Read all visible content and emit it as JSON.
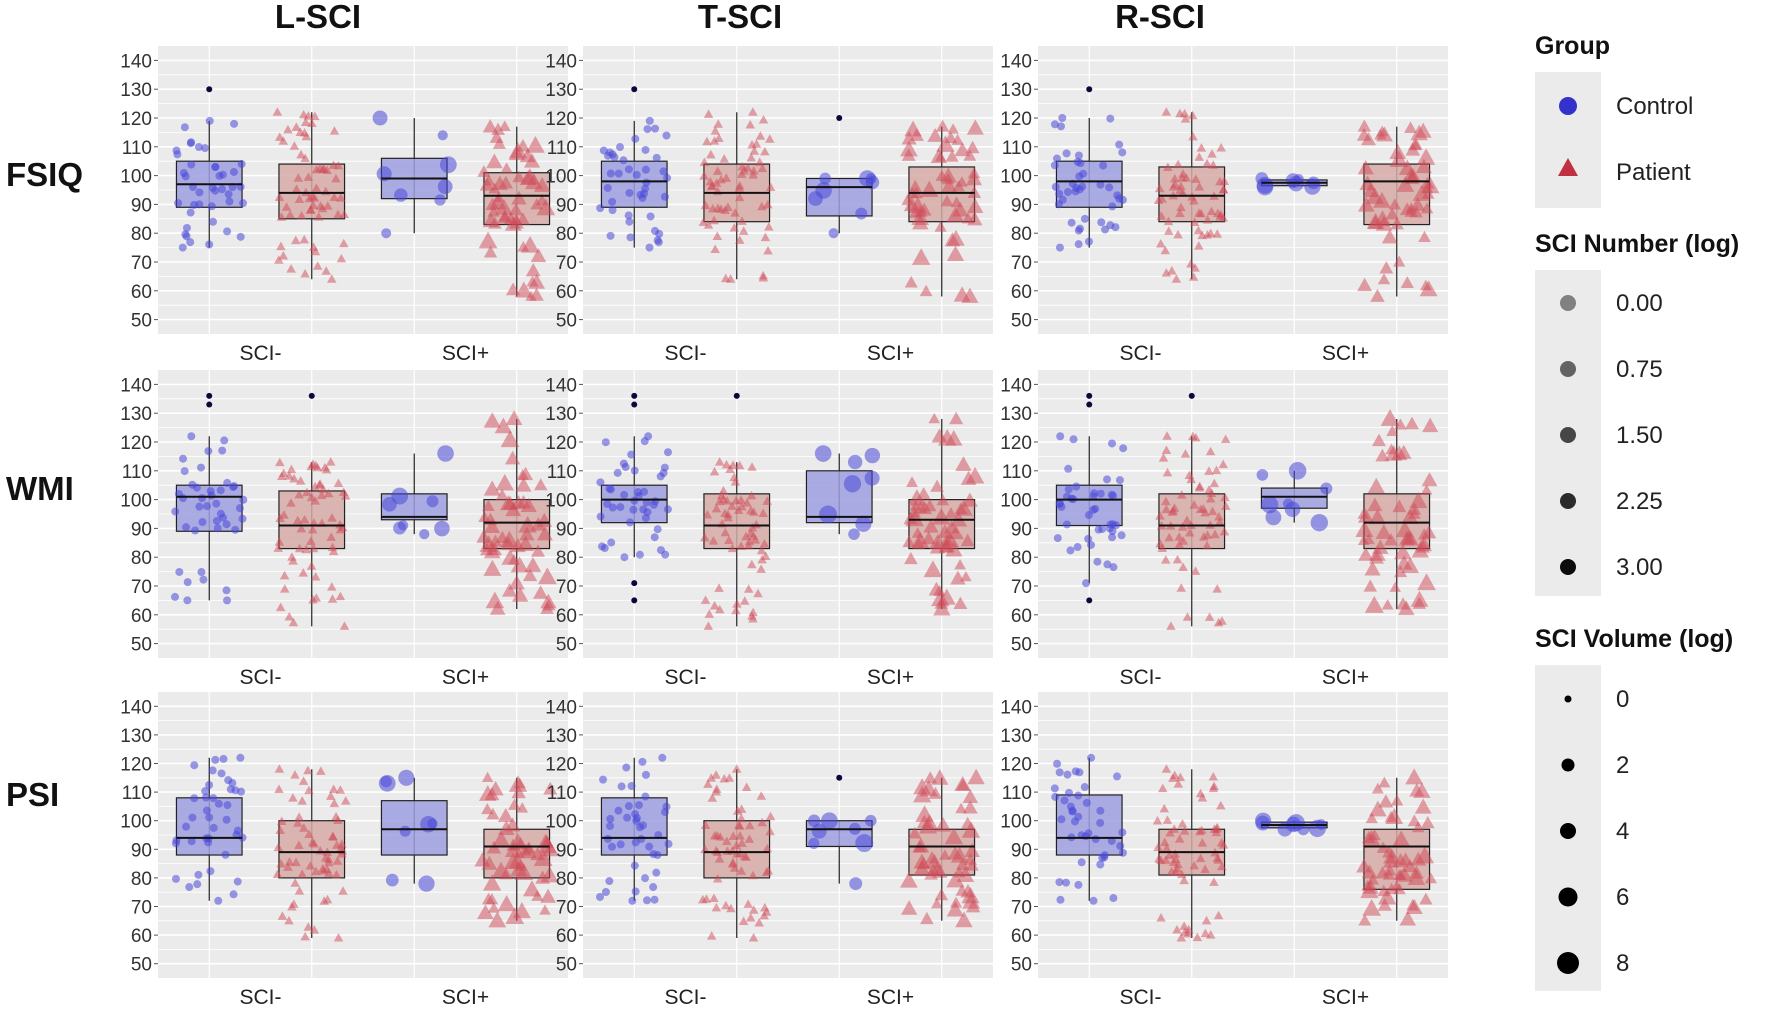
{
  "chart_data": {
    "type": "boxplot-grid",
    "columns": [
      "L-SCI",
      "T-SCI",
      "R-SCI"
    ],
    "rows": [
      "FSIQ",
      "WMI",
      "PSI"
    ],
    "categories": [
      "SCI-",
      "SCI+"
    ],
    "ylim": [
      45,
      145
    ],
    "yticks": [
      50,
      60,
      70,
      80,
      90,
      100,
      110,
      120,
      130,
      140
    ],
    "panels": [
      {
        "row": "FSIQ",
        "col": "L-SCI",
        "boxes": [
          {
            "group": "Control",
            "category": "SCI-",
            "q1": 89,
            "median": 97,
            "q3": 105,
            "wlo": 75,
            "whi": 119,
            "outliers": [
              130
            ]
          },
          {
            "group": "Patient",
            "category": "SCI-",
            "q1": 85,
            "median": 94,
            "q3": 104,
            "wlo": 64,
            "whi": 122,
            "outliers": []
          },
          {
            "group": "Control",
            "category": "SCI+",
            "q1": 92,
            "median": 99,
            "q3": 106,
            "wlo": 80,
            "whi": 120,
            "outliers": []
          },
          {
            "group": "Patient",
            "category": "SCI+",
            "q1": 83,
            "median": 93,
            "q3": 101,
            "wlo": 58,
            "whi": 117,
            "outliers": []
          }
        ]
      },
      {
        "row": "FSIQ",
        "col": "T-SCI",
        "boxes": [
          {
            "group": "Control",
            "category": "SCI-",
            "q1": 89,
            "median": 98,
            "q3": 105,
            "wlo": 75,
            "whi": 119,
            "outliers": [
              130
            ]
          },
          {
            "group": "Patient",
            "category": "SCI-",
            "q1": 84,
            "median": 94,
            "q3": 104,
            "wlo": 64,
            "whi": 122,
            "outliers": []
          },
          {
            "group": "Control",
            "category": "SCI+",
            "q1": 86,
            "median": 96,
            "q3": 99,
            "wlo": 80,
            "whi": 99,
            "outliers": [
              120
            ]
          },
          {
            "group": "Patient",
            "category": "SCI+",
            "q1": 84,
            "median": 94,
            "q3": 103,
            "wlo": 58,
            "whi": 117,
            "outliers": []
          }
        ]
      },
      {
        "row": "FSIQ",
        "col": "R-SCI",
        "boxes": [
          {
            "group": "Control",
            "category": "SCI-",
            "q1": 89,
            "median": 98,
            "q3": 105,
            "wlo": 75,
            "whi": 120,
            "outliers": [
              130
            ]
          },
          {
            "group": "Patient",
            "category": "SCI-",
            "q1": 84,
            "median": 93,
            "q3": 103,
            "wlo": 64,
            "whi": 122,
            "outliers": []
          },
          {
            "group": "Control",
            "category": "SCI+",
            "q1": 96.5,
            "median": 97.5,
            "q3": 98.5,
            "wlo": 96,
            "whi": 99,
            "outliers": []
          },
          {
            "group": "Patient",
            "category": "SCI+",
            "q1": 83,
            "median": 98,
            "q3": 104,
            "wlo": 58,
            "whi": 117,
            "outliers": []
          }
        ]
      },
      {
        "row": "WMI",
        "col": "L-SCI",
        "boxes": [
          {
            "group": "Control",
            "category": "SCI-",
            "q1": 89,
            "median": 101,
            "q3": 105,
            "wlo": 65,
            "whi": 122,
            "outliers": [
              133,
              136
            ]
          },
          {
            "group": "Patient",
            "category": "SCI-",
            "q1": 83,
            "median": 91,
            "q3": 103,
            "wlo": 56,
            "whi": 113,
            "outliers": [
              136
            ]
          },
          {
            "group": "Control",
            "category": "SCI+",
            "q1": 93,
            "median": 94,
            "q3": 102,
            "wlo": 88,
            "whi": 116,
            "outliers": []
          },
          {
            "group": "Patient",
            "category": "SCI+",
            "q1": 83,
            "median": 92,
            "q3": 100,
            "wlo": 62,
            "whi": 128,
            "outliers": []
          }
        ]
      },
      {
        "row": "WMI",
        "col": "T-SCI",
        "boxes": [
          {
            "group": "Control",
            "category": "SCI-",
            "q1": 92,
            "median": 100,
            "q3": 105,
            "wlo": 80,
            "whi": 122,
            "outliers": [
              65,
              71,
              133,
              136
            ]
          },
          {
            "group": "Patient",
            "category": "SCI-",
            "q1": 83,
            "median": 91,
            "q3": 102,
            "wlo": 56,
            "whi": 113,
            "outliers": [
              136
            ]
          },
          {
            "group": "Control",
            "category": "SCI+",
            "q1": 92,
            "median": 94,
            "q3": 110,
            "wlo": 88,
            "whi": 116,
            "outliers": []
          },
          {
            "group": "Patient",
            "category": "SCI+",
            "q1": 83,
            "median": 93,
            "q3": 100,
            "wlo": 62,
            "whi": 128,
            "outliers": []
          }
        ]
      },
      {
        "row": "WMI",
        "col": "R-SCI",
        "boxes": [
          {
            "group": "Control",
            "category": "SCI-",
            "q1": 91,
            "median": 100,
            "q3": 105,
            "wlo": 71,
            "whi": 122,
            "outliers": [
              65,
              133,
              136
            ]
          },
          {
            "group": "Patient",
            "category": "SCI-",
            "q1": 83,
            "median": 91,
            "q3": 102,
            "wlo": 56,
            "whi": 122,
            "outliers": [
              136
            ]
          },
          {
            "group": "Control",
            "category": "SCI+",
            "q1": 97,
            "median": 101,
            "q3": 104,
            "wlo": 92,
            "whi": 110,
            "outliers": []
          },
          {
            "group": "Patient",
            "category": "SCI+",
            "q1": 83,
            "median": 92,
            "q3": 102,
            "wlo": 62,
            "whi": 128,
            "outliers": []
          }
        ]
      },
      {
        "row": "PSI",
        "col": "L-SCI",
        "boxes": [
          {
            "group": "Control",
            "category": "SCI-",
            "q1": 88,
            "median": 94,
            "q3": 108,
            "wlo": 72,
            "whi": 122,
            "outliers": []
          },
          {
            "group": "Patient",
            "category": "SCI-",
            "q1": 80,
            "median": 89,
            "q3": 100,
            "wlo": 59,
            "whi": 118,
            "outliers": []
          },
          {
            "group": "Control",
            "category": "SCI+",
            "q1": 88,
            "median": 97,
            "q3": 107,
            "wlo": 78,
            "whi": 115,
            "outliers": []
          },
          {
            "group": "Patient",
            "category": "SCI+",
            "q1": 80,
            "median": 91,
            "q3": 97,
            "wlo": 65,
            "whi": 115,
            "outliers": []
          }
        ]
      },
      {
        "row": "PSI",
        "col": "T-SCI",
        "boxes": [
          {
            "group": "Control",
            "category": "SCI-",
            "q1": 88,
            "median": 94,
            "q3": 108,
            "wlo": 72,
            "whi": 122,
            "outliers": []
          },
          {
            "group": "Patient",
            "category": "SCI-",
            "q1": 80,
            "median": 89,
            "q3": 100,
            "wlo": 59,
            "whi": 118,
            "outliers": []
          },
          {
            "group": "Control",
            "category": "SCI+",
            "q1": 91,
            "median": 97,
            "q3": 100,
            "wlo": 78,
            "whi": 100,
            "outliers": [
              115
            ]
          },
          {
            "group": "Patient",
            "category": "SCI+",
            "q1": 81,
            "median": 91,
            "q3": 97,
            "wlo": 65,
            "whi": 115,
            "outliers": []
          }
        ]
      },
      {
        "row": "PSI",
        "col": "R-SCI",
        "boxes": [
          {
            "group": "Control",
            "category": "SCI-",
            "q1": 88,
            "median": 94,
            "q3": 109,
            "wlo": 72,
            "whi": 122,
            "outliers": []
          },
          {
            "group": "Patient",
            "category": "SCI-",
            "q1": 81,
            "median": 89,
            "q3": 97,
            "wlo": 59,
            "whi": 118,
            "outliers": []
          },
          {
            "group": "Control",
            "category": "SCI+",
            "q1": 97.5,
            "median": 98.5,
            "q3": 99.5,
            "wlo": 97,
            "whi": 100,
            "outliers": []
          },
          {
            "group": "Patient",
            "category": "SCI+",
            "q1": 76,
            "median": 91,
            "q3": 97,
            "wlo": 65,
            "whi": 115,
            "outliers": []
          }
        ]
      }
    ]
  },
  "legend": {
    "group": {
      "title": "Group",
      "items": [
        {
          "label": "Control",
          "shape": "circle",
          "color": "#3333cc"
        },
        {
          "label": "Patient",
          "shape": "triangle",
          "color": "#c03040"
        }
      ]
    },
    "sci_number": {
      "title": "SCI Number (log)",
      "items": [
        "0.00",
        "0.75",
        "1.50",
        "2.25",
        "3.00"
      ]
    },
    "sci_volume": {
      "title": "SCI Volume (log)",
      "items": [
        "0",
        "2",
        "4",
        "6",
        "8"
      ]
    }
  },
  "colors": {
    "panel_bg": "#ebebeb",
    "grid": "#ffffff",
    "control_fill": "#9f9fe0",
    "control_point": "#4848d8",
    "patient_fill": "#d6aaa6",
    "patient_point": "#cf4a58",
    "outlier": "#0a0a3a"
  }
}
